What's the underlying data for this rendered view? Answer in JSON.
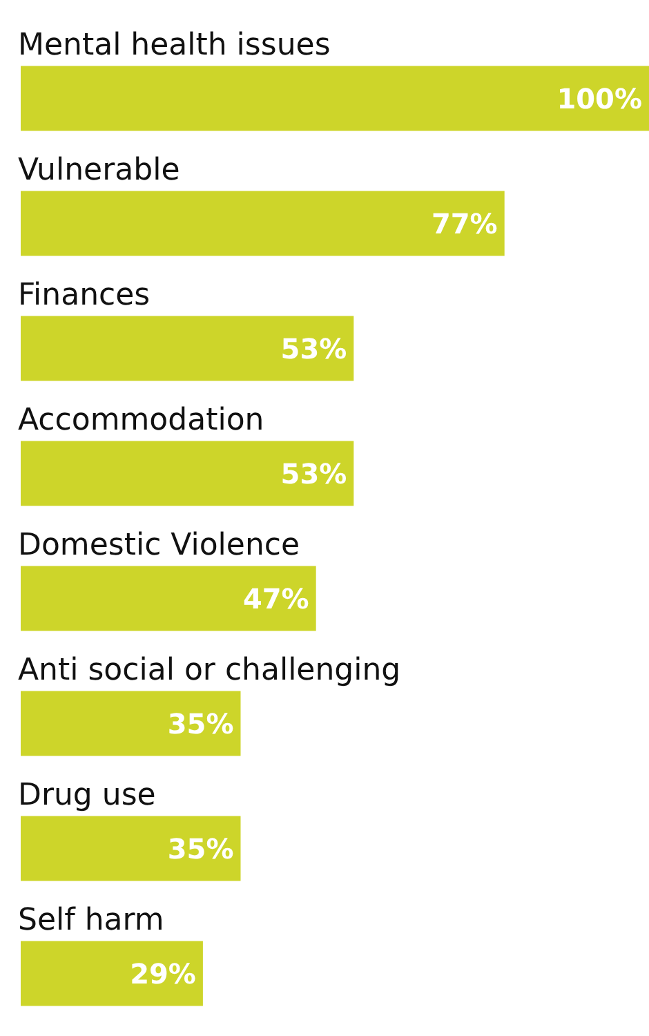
{
  "chart_data": {
    "type": "bar",
    "orientation": "horizontal",
    "categories": [
      "Mental health issues",
      "Vulnerable",
      "Finances",
      "Accommodation",
      "Domestic Violence",
      "Anti social or challenging",
      "Drug use",
      "Self harm"
    ],
    "values": [
      100,
      77,
      53,
      53,
      47,
      35,
      35,
      29
    ],
    "value_labels": [
      "100%",
      "77%",
      "53%",
      "53%",
      "47%",
      "35%",
      "35%",
      "29%"
    ],
    "color": "#cdd52a",
    "xlim": [
      0,
      100
    ]
  }
}
